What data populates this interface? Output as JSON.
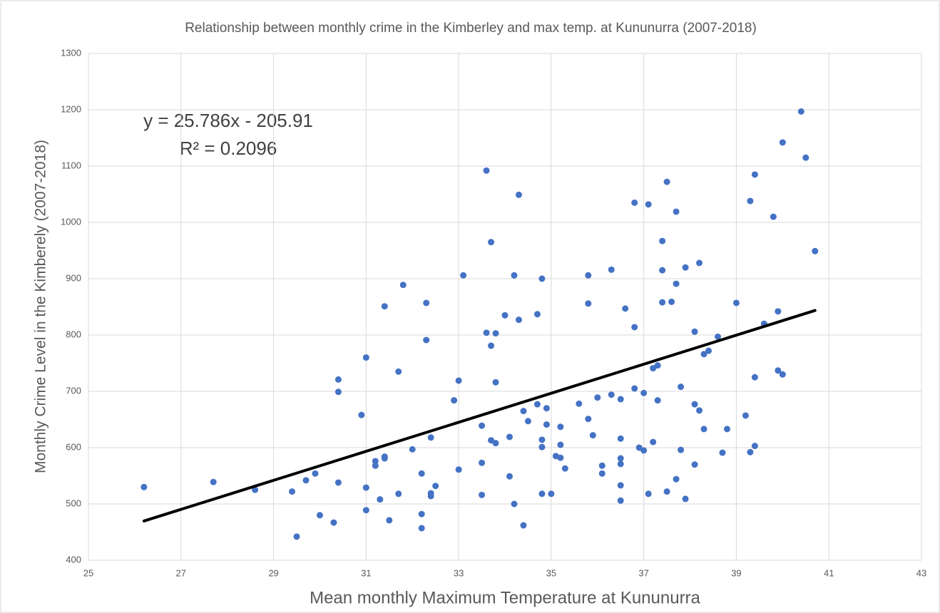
{
  "chart_data": {
    "type": "scatter",
    "title": "Relationship between monthly crime in the Kimberley and max temp. at Kununurra (2007-2018)",
    "x_label": "Mean monthly Maximum Temperature at Kununurra",
    "y_label": "Monthly Crime Level in the Kimberely (2007-2018)",
    "color": "#4472c4",
    "x": [
      26.2,
      27.7,
      28.6,
      29.4,
      29.5,
      29.7,
      29.9,
      30.0,
      30.3,
      30.4,
      30.4,
      30.4,
      30.9,
      31.0,
      31.0,
      31.0,
      31.2,
      31.2,
      31.3,
      31.4,
      31.4,
      31.4,
      31.5,
      31.7,
      31.7,
      31.8,
      32.0,
      32.2,
      32.2,
      32.2,
      32.3,
      32.3,
      32.4,
      32.4,
      32.4,
      32.5,
      32.9,
      33.0,
      33.0,
      33.1,
      33.5,
      33.5,
      33.5,
      33.6,
      33.6,
      33.7,
      33.7,
      33.7,
      33.8,
      33.8,
      33.8,
      34.0,
      34.1,
      34.1,
      34.2,
      34.2,
      34.3,
      34.3,
      34.4,
      34.4,
      34.5,
      34.7,
      34.7,
      34.8,
      34.8,
      34.8,
      34.8,
      34.9,
      34.9,
      35.0,
      35.1,
      35.2,
      35.2,
      35.2,
      35.3,
      35.6,
      35.8,
      35.8,
      35.8,
      35.9,
      36.0,
      36.1,
      36.1,
      36.3,
      36.3,
      36.5,
      36.5,
      36.5,
      36.5,
      36.5,
      36.5,
      36.6,
      36.8,
      36.8,
      36.8,
      36.9,
      37.0,
      37.0,
      37.1,
      37.1,
      37.2,
      37.2,
      37.3,
      37.3,
      37.4,
      37.4,
      37.4,
      37.5,
      37.5,
      37.6,
      37.7,
      37.7,
      37.7,
      37.8,
      37.8,
      37.9,
      37.9,
      38.1,
      38.1,
      38.1,
      38.2,
      38.2,
      38.3,
      38.3,
      38.4,
      38.6,
      38.7,
      38.8,
      39.0,
      39.2,
      39.3,
      39.3,
      39.4,
      39.4,
      39.4,
      39.6,
      39.8,
      39.9,
      39.9,
      40.0,
      40.0,
      40.4,
      40.5,
      40.7
    ],
    "values": [
      530,
      539,
      525,
      522,
      442,
      542,
      554,
      480,
      467,
      721,
      699,
      538,
      658,
      760,
      529,
      489,
      576,
      568,
      508,
      851,
      584,
      581,
      471,
      735,
      518,
      889,
      597,
      554,
      482,
      457,
      857,
      791,
      618,
      519,
      514,
      532,
      684,
      719,
      561,
      906,
      639,
      573,
      516,
      1092,
      804,
      965,
      781,
      613,
      803,
      716,
      608,
      835,
      619,
      549,
      906,
      500,
      1049,
      827,
      462,
      665,
      647,
      837,
      677,
      900,
      614,
      601,
      518,
      670,
      641,
      518,
      585,
      637,
      605,
      582,
      563,
      678,
      906,
      856,
      651,
      622,
      689,
      568,
      554,
      694,
      916,
      686,
      616,
      581,
      571,
      533,
      506,
      847,
      1035,
      814,
      705,
      600,
      697,
      595,
      1032,
      518,
      741,
      610,
      746,
      684,
      967,
      915,
      858,
      1072,
      522,
      859,
      1019,
      891,
      544,
      708,
      596,
      920,
      509,
      806,
      677,
      570,
      928,
      666,
      766,
      633,
      772,
      797,
      591,
      633,
      857,
      657,
      1038,
      592,
      1085,
      725,
      603,
      820,
      1010,
      842,
      737,
      1142,
      730,
      1197,
      1115,
      949
    ],
    "trendline": {
      "label": "y = 25.786x - 205.91",
      "r2_label": "R² = 0.2096",
      "slope": 25.786,
      "intercept": -205.91,
      "x": [
        26.2,
        40.7
      ],
      "color": "#000000"
    },
    "xlim": [
      25,
      43
    ],
    "xticks": [
      25,
      27,
      29,
      31,
      33,
      35,
      37,
      39,
      41,
      43
    ],
    "ylim": [
      400,
      1300
    ],
    "yticks": [
      400,
      500,
      600,
      700,
      800,
      900,
      1000,
      1100,
      1200,
      1300
    ],
    "grid": true
  }
}
